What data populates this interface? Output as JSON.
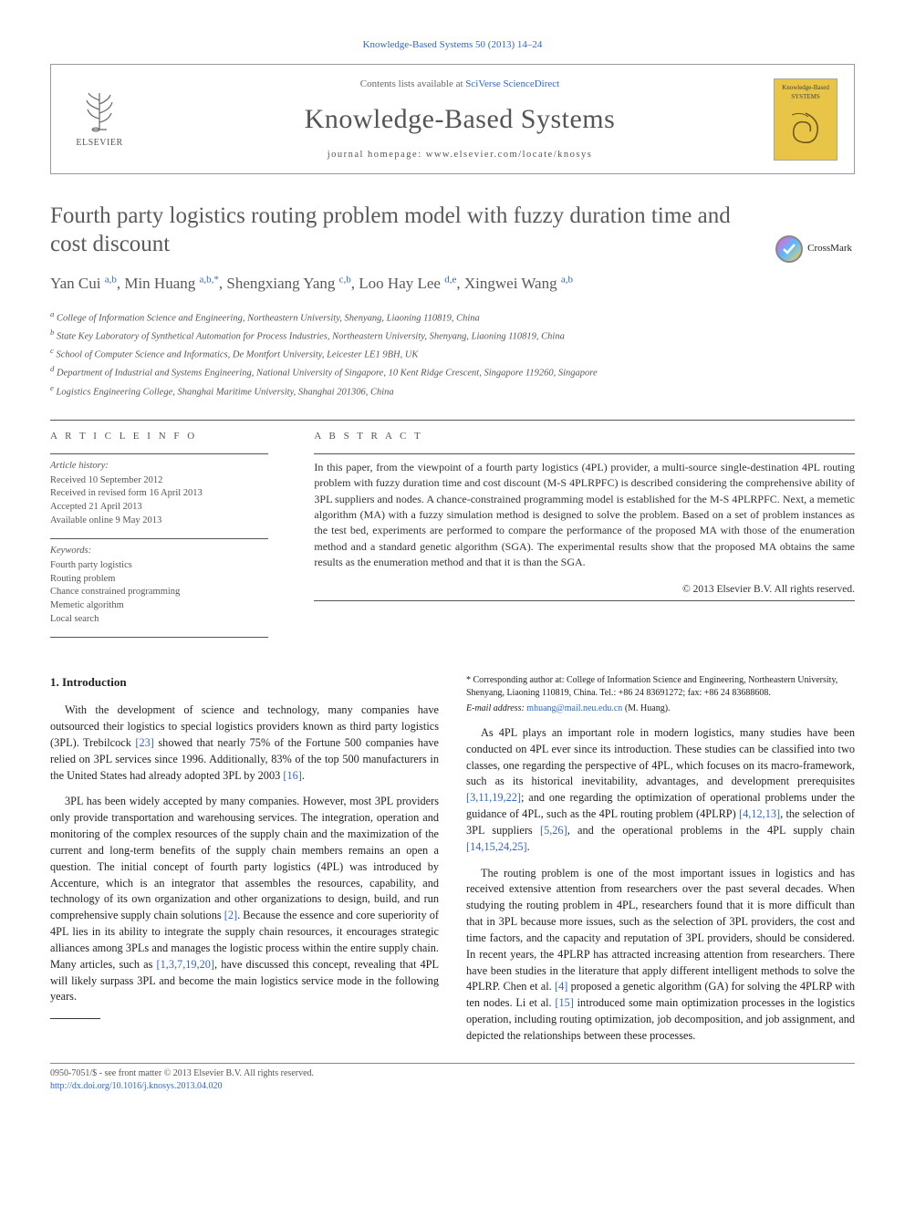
{
  "citation": "Knowledge-Based Systems 50 (2013) 14–24",
  "header": {
    "contents_prefix": "Contents lists available at ",
    "sciverse": "SciVerse ScienceDirect",
    "journal": "Knowledge-Based Systems",
    "homepage_prefix": "journal homepage: ",
    "homepage_url": "www.elsevier.com/locate/knosys",
    "publisher_logo_text": "ELSEVIER",
    "cover_text": "Knowledge-Based SYSTEMS"
  },
  "crossmark_label": "CrossMark",
  "title": "Fourth party logistics routing problem model with fuzzy duration time and cost discount",
  "authors_html": "Yan Cui <sup>a,b</sup>, Min Huang <sup>a,b,*</sup>, Shengxiang Yang <sup>c,b</sup>, Loo Hay Lee <sup>d,e</sup>, Xingwei Wang <sup>a,b</sup>",
  "affiliations": [
    "a College of Information Science and Engineering, Northeastern University, Shenyang, Liaoning 110819, China",
    "b State Key Laboratory of Synthetical Automation for Process Industries, Northeastern University, Shenyang, Liaoning 110819, China",
    "c School of Computer Science and Informatics, De Montfort University, Leicester LE1 9BH, UK",
    "d Department of Industrial and Systems Engineering, National University of Singapore, 10 Kent Ridge Crescent, Singapore 119260, Singapore",
    "e Logistics Engineering College, Shanghai Maritime University, Shanghai 201306, China"
  ],
  "article_info": {
    "heading": "A R T I C L E   I N F O",
    "history_label": "Article history:",
    "history": [
      "Received 10 September 2012",
      "Received in revised form 16 April 2013",
      "Accepted 21 April 2013",
      "Available online 9 May 2013"
    ],
    "keywords_label": "Keywords:",
    "keywords": [
      "Fourth party logistics",
      "Routing problem",
      "Chance constrained programming",
      "Memetic algorithm",
      "Local search"
    ]
  },
  "abstract": {
    "heading": "A B S T R A C T",
    "text": "In this paper, from the viewpoint of a fourth party logistics (4PL) provider, a multi-source single-destination 4PL routing problem with fuzzy duration time and cost discount (M-S 4PLRPFC) is described considering the comprehensive ability of 3PL suppliers and nodes. A chance-constrained programming model is established for the M-S 4PLRPFC. Next, a memetic algorithm (MA) with a fuzzy simulation method is designed to solve the problem. Based on a set of problem instances as the test bed, experiments are performed to compare the performance of the proposed MA with those of the enumeration method and a standard genetic algorithm (SGA). The experimental results show that the proposed MA obtains the same results as the enumeration method and that it is than the SGA.",
    "copyright": "© 2013 Elsevier B.V. All rights reserved."
  },
  "section1_heading": "1. Introduction",
  "paragraphs": {
    "p1a": "With the development of science and technology, many companies have outsourced their logistics to special logistics providers known as third party logistics (3PL). Trebilcock ",
    "p1_ref1": "[23]",
    "p1b": " showed that nearly 75% of the Fortune 500 companies have relied on 3PL services since 1996. Additionally, 83% of the top 500 manufacturers in the United States had already adopted 3PL by 2003 ",
    "p1_ref2": "[16]",
    "p1c": ".",
    "p2a": "3PL has been widely accepted by many companies. However, most 3PL providers only provide transportation and warehousing services. The integration, operation and monitoring of the complex resources of the supply chain and the maximization of the current and long-term benefits of the supply chain members remains an open a question. The initial concept of fourth party logistics (4PL) was introduced by Accenture, which is an integrator that assembles the resources, capability, and technology of its own organization and other organizations to design, build, and run comprehensive supply chain solutions ",
    "p2_ref1": "[2]",
    "p2b": ". Because the essence and core superiority of 4PL lies in its ability to integrate the supply chain resources, it encourages strategic alliances among 3PLs and manages the logistic process within the entire supply chain. Many articles, such as ",
    "p2_ref2": "[1,3,7,19,20]",
    "p2c": ", have discussed this concept, revealing that 4PL will likely surpass 3PL and become the main logistics service mode in the following years.",
    "p3a": "As 4PL plays an important role in modern logistics, many studies have been conducted on 4PL ever since its introduction. These studies can be classified into two classes, one regarding the perspective of 4PL, which focuses on its macro-framework, such as its historical inevitability, advantages, and development prerequisites ",
    "p3_ref1": "[3,11,19,22]",
    "p3b": "; and one regarding the optimization of operational problems under the guidance of 4PL, such as the 4PL routing problem (4PLRP) ",
    "p3_ref2": "[4,12,13]",
    "p3c": ", the selection of 3PL suppliers ",
    "p3_ref3": "[5,26]",
    "p3d": ", and the operational problems in the 4PL supply chain ",
    "p3_ref4": "[14,15,24,25]",
    "p3e": ".",
    "p4a": "The routing problem is one of the most important issues in logistics and has received extensive attention from researchers over the past several decades. When studying the routing problem in 4PL, researchers found that it is more difficult than that in 3PL because more issues, such as the selection of 3PL providers, the cost and time factors, and the capacity and reputation of 3PL providers, should be considered. In recent years, the 4PLRP has attracted increasing attention from researchers. There have been studies in the literature that apply different intelligent methods to solve the 4PLRP. Chen et al. ",
    "p4_ref1": "[4]",
    "p4b": " proposed a genetic algorithm (GA) for solving the 4PLRP with ten nodes. Li et al. ",
    "p4_ref2": "[15]",
    "p4c": " introduced some main optimization processes in the logistics operation, including routing optimization, job decomposition, and job assignment, and depicted the relationships between these processes."
  },
  "footnote": {
    "corr": "* Corresponding author at: College of Information Science and Engineering, Northeastern University, Shenyang, Liaoning 110819, China. Tel.: +86 24 83691272; fax: +86 24 83688608.",
    "email_label": "E-mail address:",
    "email": "mhuang@mail.neu.edu.cn",
    "email_who": "(M. Huang)."
  },
  "bottom": {
    "line1": "0950-7051/$ - see front matter © 2013 Elsevier B.V. All rights reserved.",
    "doi": "http://dx.doi.org/10.1016/j.knosys.2013.04.020"
  },
  "colors": {
    "link": "#3366cc",
    "text_grey": "#5a5a5a",
    "border": "#555555",
    "cover_bg": "#e8c547"
  }
}
